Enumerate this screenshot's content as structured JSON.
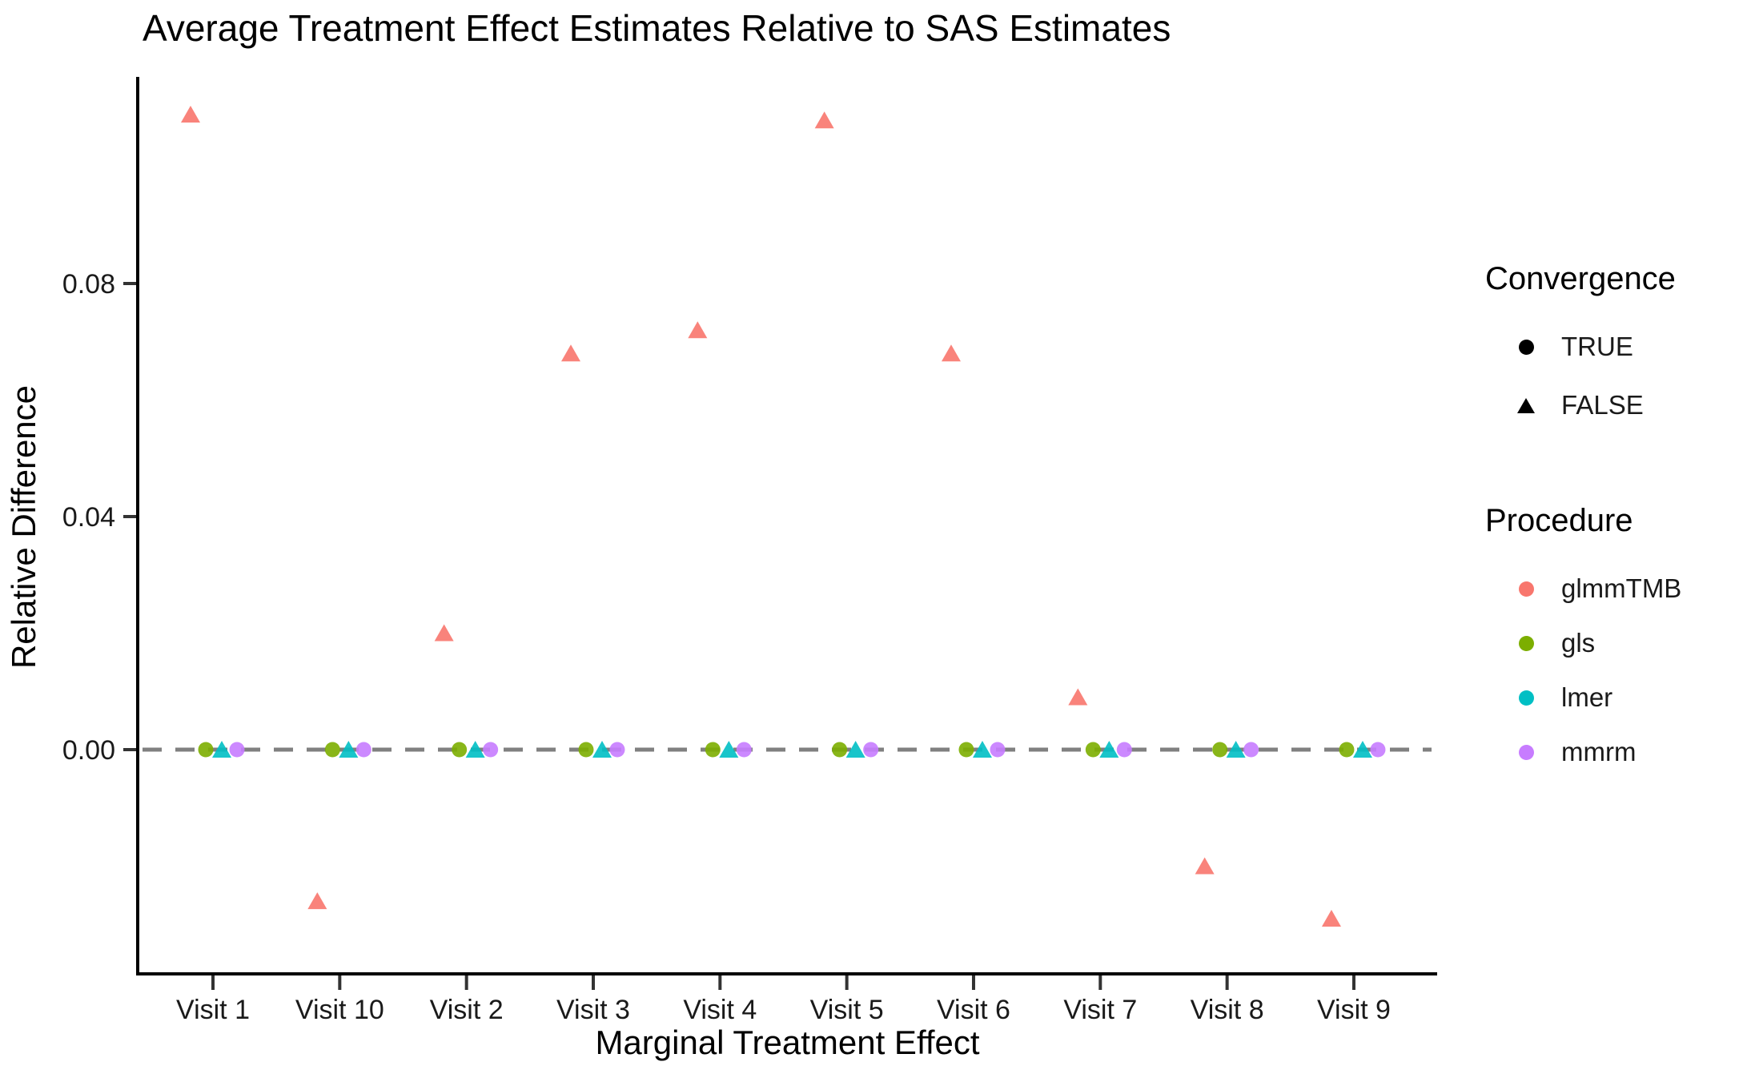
{
  "chart_data": {
    "type": "scatter",
    "title": "Average Treatment Effect Estimates Relative to SAS Estimates",
    "xlabel": "Marginal Treatment Effect",
    "ylabel": "Relative Difference",
    "categories": [
      "Visit 1",
      "Visit 10",
      "Visit 2",
      "Visit 3",
      "Visit 4",
      "Visit 5",
      "Visit 6",
      "Visit 7",
      "Visit 8",
      "Visit 9"
    ],
    "y_ticks": [
      0.0,
      0.04,
      0.08
    ],
    "y_tick_labels": [
      "0.00",
      "0.04",
      "0.08"
    ],
    "ylim": [
      -0.0385,
      0.1155
    ],
    "grid": "off",
    "reference_line": {
      "y": 0.0,
      "style": "dashed",
      "color": "#808080"
    },
    "series": [
      {
        "name": "glmmTMB",
        "color": "#F8766D",
        "marker": "triangle",
        "convergence": "FALSE",
        "values": [
          0.109,
          -0.026,
          0.02,
          0.068,
          0.072,
          0.108,
          0.068,
          0.009,
          -0.02,
          -0.029
        ]
      },
      {
        "name": "gls",
        "color": "#7CAE00",
        "marker": "circle",
        "convergence": "TRUE",
        "values": [
          0.0,
          0.0,
          0.0,
          0.0,
          0.0,
          0.0,
          0.0,
          0.0,
          0.0,
          0.0
        ]
      },
      {
        "name": "lmer",
        "color": "#00BFC4",
        "marker": "triangle",
        "convergence": "FALSE",
        "values": [
          0.0,
          0.0,
          0.0,
          0.0,
          0.0,
          0.0,
          0.0,
          0.0,
          0.0,
          0.0
        ]
      },
      {
        "name": "mmrm",
        "color": "#C77CFF",
        "marker": "circle",
        "convergence": "TRUE",
        "values": [
          0.0,
          0.0,
          0.0,
          0.0,
          0.0,
          0.0,
          0.0,
          0.0,
          0.0,
          0.0
        ]
      }
    ],
    "legend": {
      "position": "right",
      "convergence": {
        "title": "Convergence",
        "items": [
          {
            "label": "TRUE",
            "marker": "circle"
          },
          {
            "label": "FALSE",
            "marker": "triangle"
          }
        ]
      },
      "procedure": {
        "title": "Procedure",
        "items": [
          {
            "label": "glmmTMB",
            "color": "#F8766D"
          },
          {
            "label": "gls",
            "color": "#7CAE00"
          },
          {
            "label": "lmer",
            "color": "#00BFC4"
          },
          {
            "label": "mmrm",
            "color": "#C77CFF"
          }
        ]
      }
    }
  }
}
